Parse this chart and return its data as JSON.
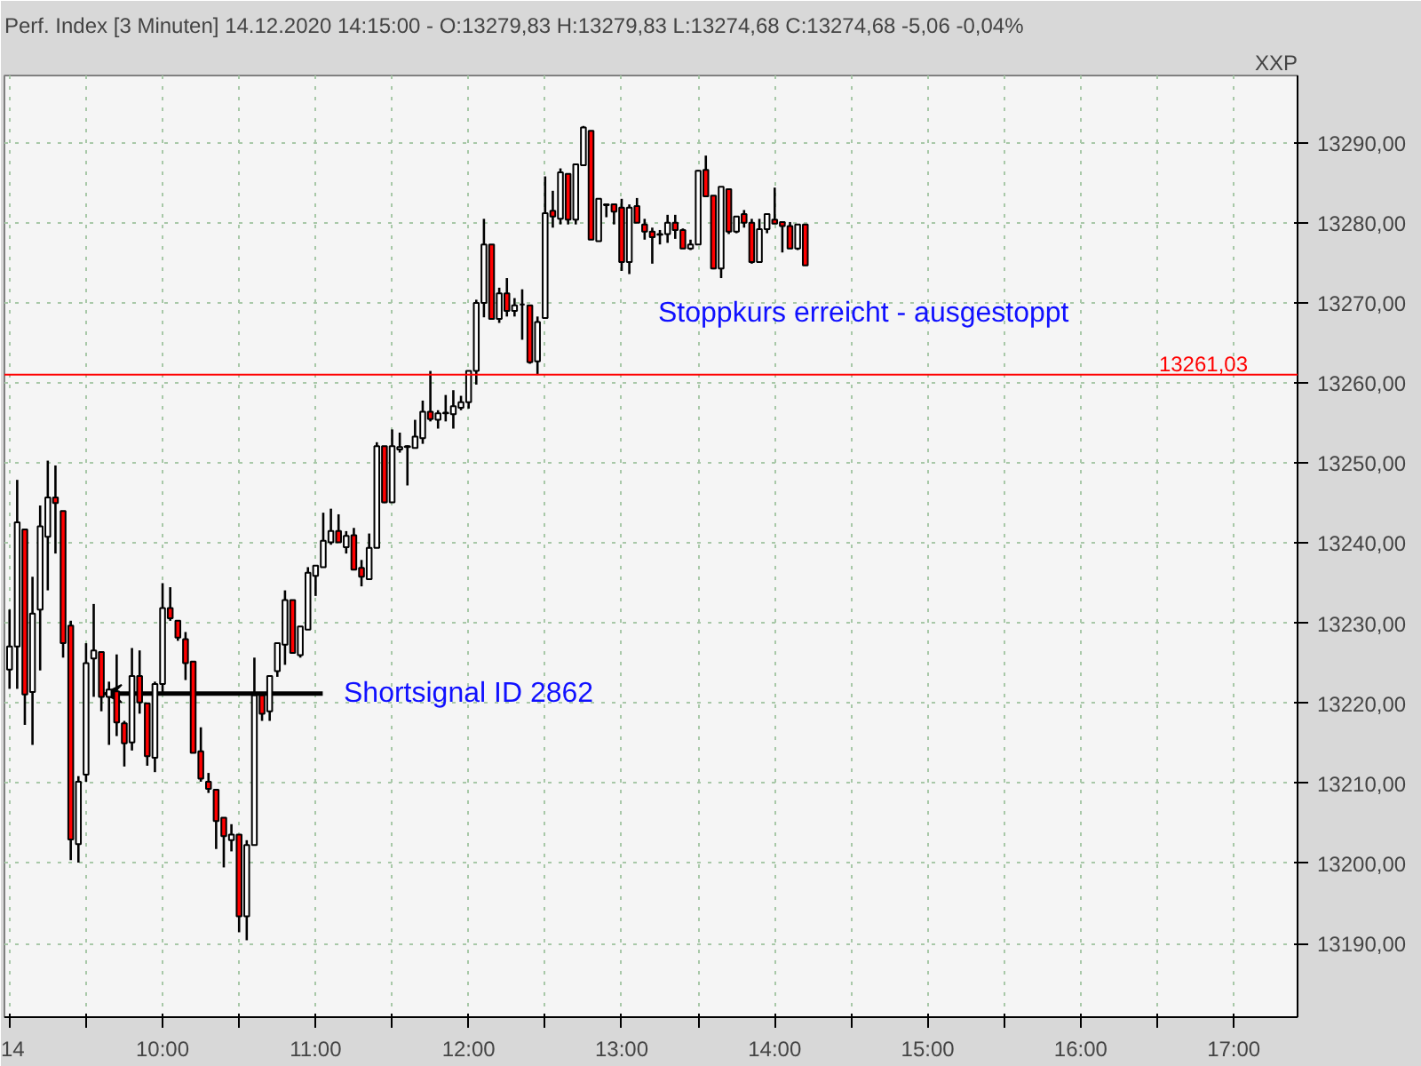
{
  "chart_data": {
    "type": "candlestick",
    "title": "Perf. Index [3 Minuten] 14.12.2020 14:15:00 - O:13279,83 H:13279,83 L:13274,68 C:13274,68 -5,06 -0,04%",
    "x": [
      "2020-12-14T09:00",
      "2020-12-14T09:03",
      "2020-12-14T09:06",
      "2020-12-14T09:09",
      "2020-12-14T09:12",
      "2020-12-14T09:15",
      "2020-12-14T09:18",
      "2020-12-14T09:21",
      "2020-12-14T09:24",
      "2020-12-14T09:27",
      "2020-12-14T09:30",
      "2020-12-14T09:33",
      "2020-12-14T09:36",
      "2020-12-14T09:39",
      "2020-12-14T09:42",
      "2020-12-14T09:45",
      "2020-12-14T09:48",
      "2020-12-14T09:51",
      "2020-12-14T09:54",
      "2020-12-14T09:57",
      "2020-12-14T10:00",
      "2020-12-14T10:03",
      "2020-12-14T10:06",
      "2020-12-14T10:09",
      "2020-12-14T10:12",
      "2020-12-14T10:15",
      "2020-12-14T10:18",
      "2020-12-14T10:21",
      "2020-12-14T10:24",
      "2020-12-14T10:27",
      "2020-12-14T10:30",
      "2020-12-14T10:33",
      "2020-12-14T10:36",
      "2020-12-14T10:39",
      "2020-12-14T10:42",
      "2020-12-14T10:45",
      "2020-12-14T10:48",
      "2020-12-14T10:51",
      "2020-12-14T10:54",
      "2020-12-14T10:57",
      "2020-12-14T11:00",
      "2020-12-14T11:03",
      "2020-12-14T11:06",
      "2020-12-14T11:09",
      "2020-12-14T11:12",
      "2020-12-14T11:15",
      "2020-12-14T11:18",
      "2020-12-14T11:21",
      "2020-12-14T11:24",
      "2020-12-14T11:27",
      "2020-12-14T11:30",
      "2020-12-14T11:33",
      "2020-12-14T11:36",
      "2020-12-14T11:39",
      "2020-12-14T11:42",
      "2020-12-14T11:45",
      "2020-12-14T11:48",
      "2020-12-14T11:51",
      "2020-12-14T11:54",
      "2020-12-14T11:57",
      "2020-12-14T12:00",
      "2020-12-14T12:03",
      "2020-12-14T12:06",
      "2020-12-14T12:09",
      "2020-12-14T12:12",
      "2020-12-14T12:15",
      "2020-12-14T12:18",
      "2020-12-14T12:21",
      "2020-12-14T12:24",
      "2020-12-14T12:27",
      "2020-12-14T12:30",
      "2020-12-14T12:33",
      "2020-12-14T12:36",
      "2020-12-14T12:39",
      "2020-12-14T12:42",
      "2020-12-14T12:45",
      "2020-12-14T12:48",
      "2020-12-14T12:51",
      "2020-12-14T12:54",
      "2020-12-14T12:57",
      "2020-12-14T13:00",
      "2020-12-14T13:03",
      "2020-12-14T13:06",
      "2020-12-14T13:09",
      "2020-12-14T13:12",
      "2020-12-14T13:15",
      "2020-12-14T13:18",
      "2020-12-14T13:21",
      "2020-12-14T13:24",
      "2020-12-14T13:27",
      "2020-12-14T13:30",
      "2020-12-14T13:33",
      "2020-12-14T13:36",
      "2020-12-14T13:39",
      "2020-12-14T13:42",
      "2020-12-14T13:45",
      "2020-12-14T13:48",
      "2020-12-14T13:51",
      "2020-12-14T13:54",
      "2020-12-14T13:57",
      "2020-12-14T14:00",
      "2020-12-14T14:03",
      "2020-12-14T14:06",
      "2020-12-14T14:09",
      "2020-12-14T14:12"
    ],
    "ohlc": [
      [
        13224.2,
        13231.7,
        13221.8,
        13227.1
      ],
      [
        13227.1,
        13247.9,
        13221.8,
        13242.6
      ],
      [
        13241.7,
        13241.7,
        13217.3,
        13221.1
      ],
      [
        13221.4,
        13235.8,
        13214.8,
        13231.2
      ],
      [
        13231.7,
        13244.7,
        13224.1,
        13242.1
      ],
      [
        13240.8,
        13250.3,
        13234.1,
        13245.7
      ],
      [
        13245.7,
        13249.7,
        13238.7,
        13245.0
      ],
      [
        13244.0,
        13244.0,
        13225.7,
        13227.5
      ],
      [
        13229.7,
        13230.3,
        13200.4,
        13203.0
      ],
      [
        13202.4,
        13210.9,
        13200.1,
        13210.2
      ],
      [
        13211.1,
        13227.5,
        13210.2,
        13225.0
      ],
      [
        13225.6,
        13232.4,
        13220.8,
        13226.6
      ],
      [
        13226.4,
        13226.4,
        13219.0,
        13220.8
      ],
      [
        13220.8,
        13222.7,
        13214.8,
        13221.7
      ],
      [
        13221.5,
        13226.1,
        13215.9,
        13217.6
      ],
      [
        13217.5,
        13217.8,
        13212.1,
        13215.0
      ],
      [
        13215.1,
        13226.9,
        13214.1,
        13223.4
      ],
      [
        13223.4,
        13226.6,
        13218.7,
        13220.1
      ],
      [
        13220.0,
        13220.0,
        13212.2,
        13213.4
      ],
      [
        13213.2,
        13222.7,
        13211.4,
        13222.4
      ],
      [
        13222.4,
        13235.0,
        13221.1,
        13231.9
      ],
      [
        13231.9,
        13234.5,
        13230.3,
        13230.6
      ],
      [
        13230.3,
        13230.3,
        13227.8,
        13228.2
      ],
      [
        13228.0,
        13228.9,
        13222.9,
        13225.0
      ],
      [
        13225.2,
        13225.2,
        13213.8,
        13213.8
      ],
      [
        13214.0,
        13217.0,
        13210.2,
        13210.6
      ],
      [
        13210.2,
        13211.3,
        13208.8,
        13209.3
      ],
      [
        13209.2,
        13209.2,
        13201.8,
        13205.3
      ],
      [
        13205.7,
        13205.7,
        13199.5,
        13203.4
      ],
      [
        13202.9,
        13204.9,
        13201.5,
        13203.6
      ],
      [
        13203.6,
        13203.6,
        13191.4,
        13193.4
      ],
      [
        13193.4,
        13202.9,
        13190.4,
        13202.3
      ],
      [
        13202.3,
        13225.7,
        13202.3,
        13221.0
      ],
      [
        13221.0,
        13221.0,
        13217.8,
        13218.7
      ],
      [
        13219.0,
        13223.4,
        13217.8,
        13223.4
      ],
      [
        13224.0,
        13227.5,
        13223.3,
        13227.5
      ],
      [
        13227.3,
        13234.1,
        13224.8,
        13232.9
      ],
      [
        13232.9,
        13232.9,
        13226.3,
        13226.3
      ],
      [
        13226.0,
        13229.6,
        13225.7,
        13229.6
      ],
      [
        13229.2,
        13237.0,
        13229.2,
        13236.3
      ],
      [
        13235.9,
        13237.2,
        13233.4,
        13237.2
      ],
      [
        13237.0,
        13243.8,
        13237.0,
        13240.3
      ],
      [
        13240.1,
        13244.3,
        13239.8,
        13241.5
      ],
      [
        13241.5,
        13243.6,
        13240.1,
        13240.1
      ],
      [
        13239.5,
        13241.5,
        13238.7,
        13240.9
      ],
      [
        13241.0,
        13241.9,
        13236.6,
        13236.7
      ],
      [
        13236.9,
        13237.9,
        13234.6,
        13235.8
      ],
      [
        13235.5,
        13241.2,
        13235.5,
        13239.4
      ],
      [
        13239.4,
        13252.6,
        13239.4,
        13252.1
      ],
      [
        13252.1,
        13252.1,
        13245.0,
        13245.1
      ],
      [
        13245.1,
        13254.2,
        13245.1,
        13252.1
      ],
      [
        13251.7,
        13253.8,
        13251.3,
        13252.0
      ],
      [
        13252.0,
        13252.2,
        13247.2,
        13252.1
      ],
      [
        13251.9,
        13255.4,
        13251.9,
        13253.3
      ],
      [
        13253.1,
        13257.8,
        13252.4,
        13256.4
      ],
      [
        13256.4,
        13261.5,
        13255.2,
        13255.5
      ],
      [
        13255.4,
        13256.6,
        13254.3,
        13256.2
      ],
      [
        13256.2,
        13258.5,
        13255.2,
        13256.3
      ],
      [
        13256.1,
        13259.1,
        13254.3,
        13257.1
      ],
      [
        13256.9,
        13258.4,
        13256.6,
        13257.6
      ],
      [
        13257.6,
        13261.5,
        13256.8,
        13261.5
      ],
      [
        13261.5,
        13270.4,
        13259.8,
        13270.0
      ],
      [
        13270.0,
        13280.5,
        13268.2,
        13277.3
      ],
      [
        13277.3,
        13277.3,
        13268.0,
        13268.0
      ],
      [
        13268.0,
        13271.9,
        13267.5,
        13271.2
      ],
      [
        13271.2,
        13273.1,
        13268.3,
        13269.0
      ],
      [
        13269.0,
        13270.6,
        13268.3,
        13269.7
      ],
      [
        13269.8,
        13271.7,
        13265.4,
        13269.8
      ],
      [
        13269.7,
        13269.7,
        13262.4,
        13262.6
      ],
      [
        13262.7,
        13268.3,
        13261.0,
        13267.6
      ],
      [
        13268.1,
        13285.8,
        13268.1,
        13281.2
      ],
      [
        13281.5,
        13284.0,
        13279.4,
        13280.8
      ],
      [
        13280.5,
        13286.8,
        13279.8,
        13286.3
      ],
      [
        13286.1,
        13286.1,
        13279.8,
        13280.4
      ],
      [
        13280.4,
        13287.3,
        13279.8,
        13287.3
      ],
      [
        13287.2,
        13292.1,
        13287.2,
        13291.9
      ],
      [
        13291.5,
        13291.5,
        13277.9,
        13277.9
      ],
      [
        13277.7,
        13283.0,
        13277.7,
        13283.0
      ],
      [
        13282.3,
        13282.3,
        13280.7,
        13282.2
      ],
      [
        13282.3,
        13282.4,
        13279.8,
        13281.4
      ],
      [
        13281.9,
        13283.0,
        13274.0,
        13275.1
      ],
      [
        13275.1,
        13282.3,
        13273.6,
        13281.9
      ],
      [
        13282.1,
        13283.1,
        13280.0,
        13280.0
      ],
      [
        13279.8,
        13280.5,
        13277.9,
        13278.9
      ],
      [
        13278.9,
        13279.4,
        13274.9,
        13278.2
      ],
      [
        13278.6,
        13279.1,
        13277.3,
        13278.5
      ],
      [
        13278.6,
        13281.0,
        13277.5,
        13280.0
      ],
      [
        13280.0,
        13281.0,
        13278.0,
        13279.1
      ],
      [
        13279.1,
        13279.3,
        13276.8,
        13276.8
      ],
      [
        13276.8,
        13277.9,
        13276.6,
        13277.3
      ],
      [
        13277.3,
        13286.6,
        13277.3,
        13286.5
      ],
      [
        13286.6,
        13288.4,
        13283.3,
        13283.3
      ],
      [
        13283.4,
        13283.4,
        13274.2,
        13274.3
      ],
      [
        13274.3,
        13284.5,
        13273.1,
        13284.5
      ],
      [
        13284.2,
        13284.2,
        13278.6,
        13278.9
      ],
      [
        13278.9,
        13280.8,
        13278.7,
        13280.8
      ],
      [
        13281.1,
        13281.6,
        13279.4,
        13280.0
      ],
      [
        13280.0,
        13280.5,
        13274.9,
        13275.1
      ],
      [
        13275.1,
        13280.5,
        13275.1,
        13279.2
      ],
      [
        13279.2,
        13281.1,
        13278.7,
        13281.1
      ],
      [
        13280.4,
        13284.4,
        13279.9,
        13279.9
      ],
      [
        13280.1,
        13280.1,
        13276.3,
        13279.6
      ],
      [
        13279.6,
        13280.1,
        13276.8,
        13276.8
      ],
      [
        13276.8,
        13279.8,
        13276.6,
        13279.8
      ],
      [
        13279.8,
        13279.8,
        13274.68,
        13274.68
      ]
    ],
    "colors": [
      "#ffffff",
      "#ffffff",
      "#ff0000",
      "#ffffff",
      "#ffffff",
      "#ffffff",
      "#ff0000",
      "#ff0000",
      "#ff0000",
      "#ffffff",
      "#ffffff",
      "#ffffff",
      "#ff0000",
      "#ffffff",
      "#ff0000",
      "#ff0000",
      "#ffffff",
      "#ff0000",
      "#ff0000",
      "#ffffff",
      "#ffffff",
      "#ff0000",
      "#ff0000",
      "#ff0000",
      "#ff0000",
      "#ff0000",
      "#ff0000",
      "#ff0000",
      "#ff0000",
      "#ffffff",
      "#ff0000",
      "#ffffff",
      "#ffffff",
      "#ff0000",
      "#ffffff",
      "#ffffff",
      "#ffffff",
      "#ff0000",
      "#ffffff",
      "#ffffff",
      "#ffffff",
      "#ffffff",
      "#ffffff",
      "#ff0000",
      "#ffffff",
      "#ff0000",
      "#ff0000",
      "#ffffff",
      "#ffffff",
      "#ff0000",
      "#ffffff",
      "#ffffff",
      "#ffffff",
      "#ffffff",
      "#ffffff",
      "#ff0000",
      "#ffffff",
      "#ffffff",
      "#ffffff",
      "#ffffff",
      "#ffffff",
      "#ffffff",
      "#ffffff",
      "#ff0000",
      "#ffffff",
      "#ff0000",
      "#ffffff",
      "#000000",
      "#ff0000",
      "#ffffff",
      "#ffffff",
      "#ff0000",
      "#ffffff",
      "#ff0000",
      "#ffffff",
      "#ffffff",
      "#ff0000",
      "#ffffff",
      "#ff0000",
      "#ff0000",
      "#ff0000",
      "#ffffff",
      "#ff0000",
      "#ff0000",
      "#ff0000",
      "#ff0000",
      "#ffffff",
      "#ff0000",
      "#ff0000",
      "#ffffff",
      "#ffffff",
      "#ff0000",
      "#ff0000",
      "#ffffff",
      "#ff0000",
      "#ffffff",
      "#ff0000",
      "#ff0000",
      "#ffffff",
      "#ffffff",
      "#ff0000",
      "#ff0000",
      "#ff0000",
      "#ffffff",
      "#ff0000"
    ],
    "xlim": [
      "2020-12-14T08:58",
      "2020-12-14T17:25"
    ],
    "xticks": [
      {
        "value": "2020-12-14T09:00",
        "label": "14"
      },
      {
        "value": "2020-12-14T09:30",
        "label": null
      },
      {
        "value": "2020-12-14T10:00",
        "label": "10:00"
      },
      {
        "value": "2020-12-14T10:30",
        "label": null
      },
      {
        "value": "2020-12-14T11:00",
        "label": "11:00"
      },
      {
        "value": "2020-12-14T11:30",
        "label": null
      },
      {
        "value": "2020-12-14T12:00",
        "label": "12:00"
      },
      {
        "value": "2020-12-14T12:30",
        "label": null
      },
      {
        "value": "2020-12-14T13:00",
        "label": "13:00"
      },
      {
        "value": "2020-12-14T13:30",
        "label": null
      },
      {
        "value": "2020-12-14T14:00",
        "label": "14:00"
      },
      {
        "value": "2020-12-14T14:30",
        "label": null
      },
      {
        "value": "2020-12-14T15:00",
        "label": "15:00"
      },
      {
        "value": "2020-12-14T15:30",
        "label": null
      },
      {
        "value": "2020-12-14T16:00",
        "label": "16:00"
      },
      {
        "value": "2020-12-14T16:30",
        "label": null
      },
      {
        "value": "2020-12-14T17:00",
        "label": "17:00"
      }
    ],
    "ylim": [
      13180.8,
      13298.4
    ],
    "yticks": [
      {
        "value": 13190,
        "label": "13190,00"
      },
      {
        "value": 13200,
        "label": "13200,00"
      },
      {
        "value": 13210,
        "label": "13210,00"
      },
      {
        "value": 13220,
        "label": "13220,00"
      },
      {
        "value": 13230,
        "label": "13230,00"
      },
      {
        "value": 13240,
        "label": "13240,00"
      },
      {
        "value": 13250,
        "label": "13250,00"
      },
      {
        "value": 13260,
        "label": "13260,00"
      },
      {
        "value": 13270,
        "label": "13270,00"
      },
      {
        "value": 13280,
        "label": "13280,00"
      },
      {
        "value": 13290,
        "label": "13290,00"
      }
    ],
    "grid": true,
    "ref_lines": [
      {
        "axis": "y",
        "value": 13261.03,
        "label": "13261,03",
        "color": "#ff0000"
      }
    ],
    "annotations": [
      "Stoppkurs erreicht - ausgestoppt",
      {
        "text": "Shortsignal ID 2862",
        "x": "2020-12-14T09:37",
        "y": 13221.2
      },
      "XXP"
    ]
  }
}
